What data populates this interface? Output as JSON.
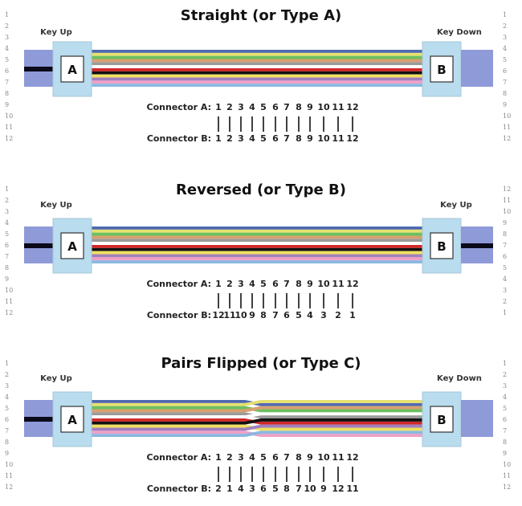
{
  "fiber_colors": [
    "#4f6ab0",
    "#e8e070",
    "#6cc060",
    "#d8a070",
    "#9a9a9a",
    "#ffffff",
    "#d02828",
    "#111111",
    "#f0e060",
    "#a080c0",
    "#f0a0c8",
    "#8ab8e0"
  ],
  "connector_colors": {
    "housing": "#b9dcee",
    "plug": "#8f9ad8",
    "key": "#0a0a1a"
  },
  "sections": [
    {
      "title": "Straight (or Type A)",
      "left_key": "Key Up",
      "right_key": "Key Down",
      "left_letter": "A",
      "right_letter": "B",
      "label_a": "Connector A:",
      "label_b": "Connector B:",
      "pins_a": [
        "1",
        "2",
        "3",
        "4",
        "5",
        "6",
        "7",
        "8",
        "9",
        "10",
        "11",
        "12"
      ],
      "pins_b": [
        "1",
        "2",
        "3",
        "4",
        "5",
        "6",
        "7",
        "8",
        "9",
        "10",
        "11",
        "12"
      ],
      "left_rows": [
        "1",
        "2",
        "3",
        "4",
        "5",
        "6",
        "7",
        "8",
        "9",
        "10",
        "11",
        "12"
      ],
      "right_rows": [
        "1",
        "2",
        "3",
        "4",
        "5",
        "6",
        "7",
        "8",
        "9",
        "10",
        "11",
        "12"
      ]
    },
    {
      "title": "Reversed (or Type B)",
      "left_key": "Key Up",
      "right_key": "Key Up",
      "left_letter": "A",
      "right_letter": "B",
      "label_a": "Connector A:",
      "label_b": "Connector B:",
      "pins_a": [
        "1",
        "2",
        "3",
        "4",
        "5",
        "6",
        "7",
        "8",
        "9",
        "10",
        "11",
        "12"
      ],
      "pins_b": [
        "12",
        "11",
        "10",
        "9",
        "8",
        "7",
        "6",
        "5",
        "4",
        "3",
        "2",
        "1"
      ],
      "left_rows": [
        "1",
        "2",
        "3",
        "4",
        "5",
        "6",
        "7",
        "8",
        "9",
        "10",
        "11",
        "12"
      ],
      "right_rows": [
        "12",
        "11",
        "10",
        "9",
        "8",
        "7",
        "6",
        "5",
        "4",
        "3",
        "2",
        "1"
      ]
    },
    {
      "title": "Pairs Flipped (or Type C)",
      "left_key": "Key Up",
      "right_key": "Key Down",
      "left_letter": "A",
      "right_letter": "B",
      "label_a": "Connector A:",
      "label_b": "Connector B:",
      "pins_a": [
        "1",
        "2",
        "3",
        "4",
        "5",
        "6",
        "7",
        "8",
        "9",
        "10",
        "11",
        "12"
      ],
      "pins_b": [
        "2",
        "1",
        "4",
        "3",
        "6",
        "5",
        "8",
        "7",
        "10",
        "9",
        "12",
        "11"
      ],
      "left_rows": [
        "1",
        "2",
        "3",
        "4",
        "5",
        "6",
        "7",
        "8",
        "9",
        "10",
        "11",
        "12"
      ],
      "right_rows": [
        "1",
        "2",
        "3",
        "4",
        "5",
        "6",
        "7",
        "8",
        "9",
        "10",
        "11",
        "12"
      ]
    }
  ]
}
